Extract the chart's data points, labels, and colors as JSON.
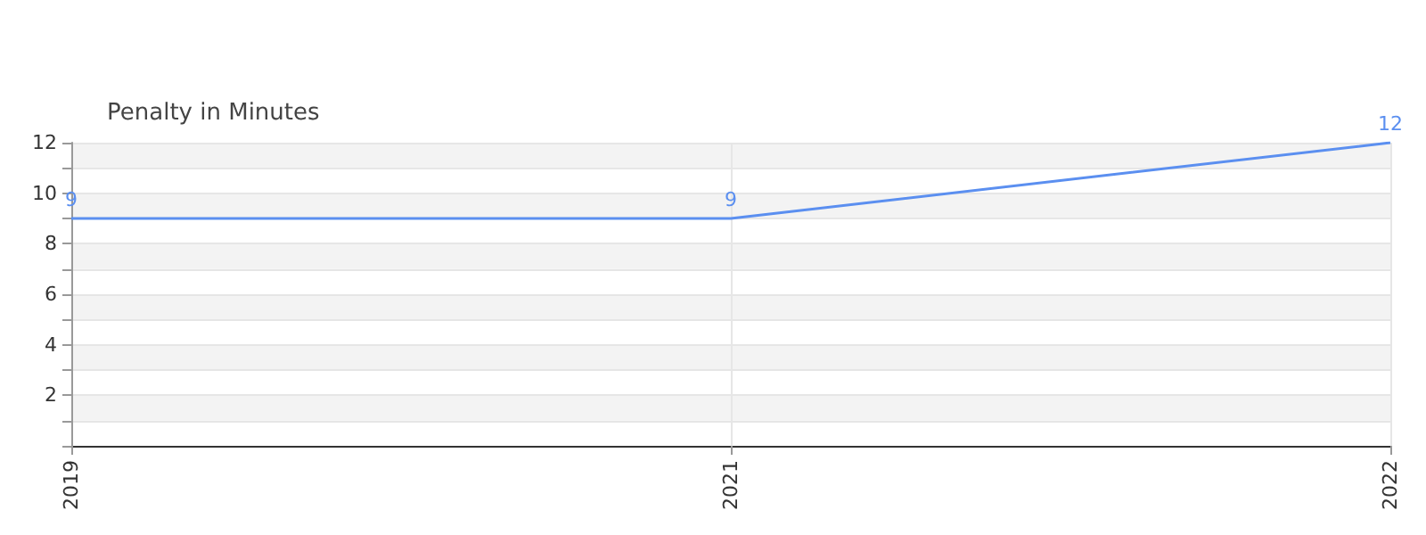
{
  "chart_data": {
    "type": "line",
    "ylabel": "Penalty in Minutes",
    "categories": [
      "2019",
      "2021",
      "2022"
    ],
    "series": [
      {
        "color": "#5b8ff0",
        "values": [
          9,
          9,
          12
        ]
      }
    ],
    "ylim": [
      0,
      12
    ],
    "yticks": [
      {
        "value": 0,
        "label": null
      },
      {
        "value": 1,
        "label": null
      },
      2,
      {
        "value": 3,
        "label": null
      },
      4,
      {
        "value": 5,
        "label": null
      },
      6,
      {
        "value": 7,
        "label": null
      },
      8,
      {
        "value": 9,
        "label": null
      },
      10,
      {
        "value": 11,
        "label": null
      },
      12
    ],
    "grid": true,
    "data_labels": true,
    "marker": "none"
  }
}
